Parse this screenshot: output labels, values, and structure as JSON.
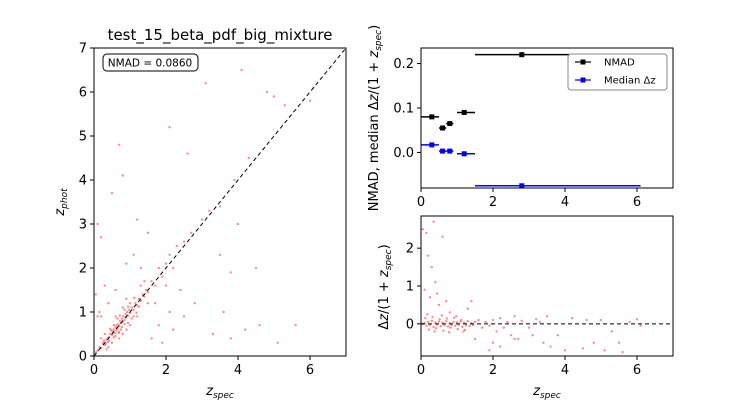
{
  "chart_data": [
    {
      "type": "scatter",
      "title": "test_15_beta_pdf_big_mixture",
      "xlabel": "z_spec",
      "ylabel": "z_phot",
      "xlim": [
        0,
        7
      ],
      "ylim": [
        0,
        7
      ],
      "xticks": [
        "0",
        "2",
        "4",
        "6"
      ],
      "yticks": [
        "0",
        "1",
        "2",
        "3",
        "4",
        "5",
        "6",
        "7"
      ],
      "annotation": "NMAD = 0.0860",
      "reference_line": "y = x (dashed)",
      "point_color": "#ff0000",
      "points": [
        [
          0.05,
          0.08
        ],
        [
          0.1,
          0.12
        ],
        [
          0.15,
          0.2
        ],
        [
          0.2,
          0.18
        ],
        [
          0.25,
          0.3
        ],
        [
          0.3,
          0.25
        ],
        [
          0.35,
          0.38
        ],
        [
          0.4,
          0.42
        ],
        [
          0.42,
          0.35
        ],
        [
          0.45,
          0.5
        ],
        [
          0.5,
          0.48
        ],
        [
          0.52,
          0.55
        ],
        [
          0.55,
          0.6
        ],
        [
          0.58,
          0.52
        ],
        [
          0.6,
          0.65
        ],
        [
          0.62,
          0.7
        ],
        [
          0.65,
          0.62
        ],
        [
          0.68,
          0.72
        ],
        [
          0.7,
          0.68
        ],
        [
          0.72,
          0.8
        ],
        [
          0.75,
          0.75
        ],
        [
          0.78,
          0.85
        ],
        [
          0.8,
          0.78
        ],
        [
          0.82,
          0.9
        ],
        [
          0.85,
          0.82
        ],
        [
          0.88,
          0.95
        ],
        [
          0.9,
          0.88
        ],
        [
          0.92,
          1.0
        ],
        [
          0.95,
          0.92
        ],
        [
          0.98,
          1.05
        ],
        [
          1.0,
          0.98
        ],
        [
          1.05,
          1.1
        ],
        [
          1.1,
          1.05
        ],
        [
          1.15,
          1.2
        ],
        [
          1.2,
          1.15
        ],
        [
          1.25,
          1.3
        ],
        [
          1.3,
          1.25
        ],
        [
          1.35,
          1.4
        ],
        [
          1.4,
          1.35
        ],
        [
          1.45,
          1.5
        ],
        [
          1.5,
          1.45
        ],
        [
          0.6,
          0.45
        ],
        [
          0.7,
          0.55
        ],
        [
          0.55,
          0.7
        ],
        [
          0.65,
          0.85
        ],
        [
          0.75,
          0.6
        ],
        [
          0.85,
          1.05
        ],
        [
          0.95,
          0.75
        ],
        [
          1.0,
          1.2
        ],
        [
          1.1,
          0.9
        ],
        [
          0.3,
          0.5
        ],
        [
          0.4,
          0.2
        ],
        [
          0.5,
          0.3
        ],
        [
          0.2,
          0.4
        ],
        [
          0.35,
          0.15
        ],
        [
          0.9,
          0.6
        ],
        [
          1.2,
          0.9
        ],
        [
          1.3,
          1.6
        ],
        [
          0.8,
          1.1
        ],
        [
          0.6,
          0.9
        ],
        [
          0.7,
          0.4
        ],
        [
          1.6,
          1.7
        ],
        [
          1.7,
          1.6
        ],
        [
          1.8,
          2.0
        ],
        [
          1.9,
          1.8
        ],
        [
          2.0,
          2.1
        ],
        [
          2.1,
          2.3
        ],
        [
          2.2,
          2.0
        ],
        [
          2.3,
          2.5
        ],
        [
          2.5,
          2.6
        ],
        [
          1.5,
          1.2
        ],
        [
          1.4,
          1.7
        ],
        [
          1.0,
          0.7
        ],
        [
          0.9,
          1.3
        ],
        [
          0.8,
          0.5
        ],
        [
          0.2,
          0.9
        ],
        [
          0.15,
          1.0
        ],
        [
          0.1,
          0.9
        ],
        [
          0.05,
          1.4
        ],
        [
          0.3,
          1.6
        ],
        [
          0.2,
          2.7
        ],
        [
          0.1,
          3.0
        ],
        [
          0.5,
          3.7
        ],
        [
          0.7,
          4.8
        ],
        [
          0.8,
          4.1
        ],
        [
          2.1,
          5.2
        ],
        [
          3.1,
          6.2
        ],
        [
          4.1,
          6.5
        ],
        [
          4.5,
          2.0
        ],
        [
          4.8,
          6.0
        ],
        [
          5.0,
          5.9
        ],
        [
          5.3,
          5.7
        ],
        [
          6.0,
          5.8
        ],
        [
          6.1,
          6.1
        ],
        [
          5.1,
          0.3
        ],
        [
          4.2,
          0.6
        ],
        [
          4.6,
          0.7
        ],
        [
          5.6,
          0.7
        ],
        [
          3.6,
          1.0
        ],
        [
          3.3,
          0.5
        ],
        [
          3.8,
          0.4
        ],
        [
          2.8,
          1.2
        ],
        [
          2.5,
          0.9
        ],
        [
          2.1,
          1.0
        ],
        [
          3.0,
          3.1
        ],
        [
          3.2,
          3.3
        ],
        [
          2.7,
          2.8
        ],
        [
          3.5,
          3.4
        ],
        [
          3.9,
          4.0
        ],
        [
          4.3,
          4.5
        ],
        [
          2.4,
          1.5
        ],
        [
          2.0,
          1.6
        ],
        [
          1.8,
          0.7
        ],
        [
          1.7,
          1.2
        ],
        [
          1.6,
          0.4
        ],
        [
          1.9,
          0.3
        ],
        [
          2.2,
          0.6
        ],
        [
          0.9,
          2.1
        ],
        [
          1.1,
          2.3
        ],
        [
          1.3,
          2.0
        ],
        [
          0.6,
          1.5
        ],
        [
          0.4,
          1.2
        ],
        [
          3.5,
          2.3
        ],
        [
          4.0,
          3.0
        ],
        [
          3.8,
          1.9
        ],
        [
          1.5,
          2.8
        ],
        [
          1.2,
          3.1
        ],
        [
          2.6,
          4.6
        ],
        [
          0.45,
          0.62
        ],
        [
          0.55,
          0.42
        ],
        [
          0.62,
          0.58
        ],
        [
          0.68,
          0.52
        ],
        [
          0.72,
          0.92
        ],
        [
          0.78,
          0.66
        ],
        [
          0.85,
          0.72
        ],
        [
          0.95,
          1.12
        ],
        [
          1.05,
          0.85
        ],
        [
          1.12,
          1.32
        ],
        [
          1.18,
          0.98
        ],
        [
          1.25,
          1.12
        ],
        [
          0.32,
          0.28
        ],
        [
          0.28,
          0.35
        ],
        [
          0.38,
          0.32
        ],
        [
          0.48,
          0.58
        ]
      ]
    },
    {
      "type": "line",
      "ylabel": "NMAD, median Δz/(1 + z_spec)",
      "xlim": [
        0,
        7
      ],
      "ylim": [
        -0.08,
        0.235
      ],
      "xticks": [
        "0",
        "2",
        "4",
        "6"
      ],
      "yticks": [
        "0.0",
        "0.1",
        "0.2"
      ],
      "legend_position": "upper right",
      "series": [
        {
          "name": "NMAD",
          "color": "#000000",
          "bins": [
            {
              "x": 0.3,
              "xerr": [
                0.0,
                0.5
              ],
              "y": 0.08,
              "yerr": 0.004
            },
            {
              "x": 0.6,
              "xerr": [
                0.5,
                0.7
              ],
              "y": 0.055,
              "yerr": 0.004
            },
            {
              "x": 0.8,
              "xerr": [
                0.7,
                0.9
              ],
              "y": 0.065,
              "yerr": 0.004
            },
            {
              "x": 1.2,
              "xerr": [
                1.0,
                1.5
              ],
              "y": 0.09,
              "yerr": 0.005
            },
            {
              "x": 2.8,
              "xerr": [
                1.5,
                6.1
              ],
              "y": 0.22,
              "yerr": 0.004
            }
          ]
        },
        {
          "name": "Median Δz",
          "color": "#0000ff",
          "bins": [
            {
              "x": 0.3,
              "xerr": [
                0.0,
                0.5
              ],
              "y": 0.017,
              "yerr": 0.004
            },
            {
              "x": 0.6,
              "xerr": [
                0.5,
                0.7
              ],
              "y": 0.003,
              "yerr": 0.003
            },
            {
              "x": 0.8,
              "xerr": [
                0.7,
                0.9
              ],
              "y": 0.003,
              "yerr": 0.003
            },
            {
              "x": 1.2,
              "xerr": [
                1.0,
                1.5
              ],
              "y": -0.003,
              "yerr": 0.004
            },
            {
              "x": 2.8,
              "xerr": [
                1.5,
                6.1
              ],
              "y": -0.075,
              "yerr": 0.004
            }
          ]
        }
      ]
    },
    {
      "type": "scatter",
      "xlabel": "z_spec",
      "ylabel": "Δz/(1 + z_spec)",
      "xlim": [
        0,
        7
      ],
      "ylim": [
        -0.85,
        2.85
      ],
      "xticks": [
        "0",
        "2",
        "4",
        "6"
      ],
      "yticks": [
        "0",
        "1",
        "2"
      ],
      "reference_line": "y = 0 (dashed)",
      "point_color": "#ff0000",
      "points": [
        [
          0.05,
          0.0
        ],
        [
          0.1,
          0.02
        ],
        [
          0.15,
          -0.05
        ],
        [
          0.2,
          0.05
        ],
        [
          0.25,
          -0.03
        ],
        [
          0.3,
          0.08
        ],
        [
          0.35,
          -0.08
        ],
        [
          0.4,
          0.04
        ],
        [
          0.45,
          -0.02
        ],
        [
          0.5,
          0.06
        ],
        [
          0.55,
          -0.06
        ],
        [
          0.6,
          0.03
        ],
        [
          0.65,
          -0.04
        ],
        [
          0.7,
          0.07
        ],
        [
          0.75,
          -0.07
        ],
        [
          0.8,
          0.02
        ],
        [
          0.85,
          -0.03
        ],
        [
          0.9,
          0.05
        ],
        [
          0.95,
          -0.05
        ],
        [
          1.0,
          0.04
        ],
        [
          1.05,
          -0.02
        ],
        [
          1.1,
          0.06
        ],
        [
          1.15,
          -0.08
        ],
        [
          1.2,
          0.03
        ],
        [
          1.25,
          -0.04
        ],
        [
          1.3,
          0.07
        ],
        [
          1.35,
          -0.06
        ],
        [
          1.4,
          0.02
        ],
        [
          1.45,
          -0.03
        ],
        [
          1.5,
          0.05
        ],
        [
          0.12,
          0.15
        ],
        [
          0.22,
          -0.15
        ],
        [
          0.32,
          0.18
        ],
        [
          0.42,
          -0.12
        ],
        [
          0.52,
          0.12
        ],
        [
          0.62,
          -0.18
        ],
        [
          0.72,
          0.14
        ],
        [
          0.82,
          -0.1
        ],
        [
          0.92,
          0.16
        ],
        [
          1.02,
          -0.14
        ],
        [
          1.12,
          0.1
        ],
        [
          1.22,
          -0.16
        ],
        [
          0.18,
          0.25
        ],
        [
          0.38,
          -0.2
        ],
        [
          0.58,
          0.22
        ],
        [
          0.78,
          -0.22
        ],
        [
          0.98,
          0.2
        ],
        [
          1.18,
          -0.2
        ],
        [
          0.05,
          2.5
        ],
        [
          0.15,
          2.4
        ],
        [
          0.2,
          1.8
        ],
        [
          0.3,
          1.5
        ],
        [
          0.1,
          0.9
        ],
        [
          0.25,
          0.7
        ],
        [
          0.4,
          1.1
        ],
        [
          0.5,
          0.5
        ],
        [
          0.35,
          2.7
        ],
        [
          0.6,
          2.3
        ],
        [
          0.45,
          0.8
        ],
        [
          0.7,
          0.6
        ],
        [
          0.8,
          0.3
        ],
        [
          1.6,
          0.1
        ],
        [
          1.7,
          -0.1
        ],
        [
          1.8,
          0.05
        ],
        [
          1.9,
          -0.05
        ],
        [
          2.0,
          0.1
        ],
        [
          2.1,
          -0.2
        ],
        [
          2.2,
          0.15
        ],
        [
          2.3,
          -0.1
        ],
        [
          2.4,
          0.05
        ],
        [
          2.5,
          -0.3
        ],
        [
          2.6,
          0.2
        ],
        [
          2.7,
          -0.4
        ],
        [
          2.8,
          0.08
        ],
        [
          3.0,
          -0.1
        ],
        [
          3.2,
          0.12
        ],
        [
          3.4,
          -0.5
        ],
        [
          3.5,
          0.2
        ],
        [
          3.6,
          -0.6
        ],
        [
          3.8,
          -0.3
        ],
        [
          4.0,
          -0.7
        ],
        [
          4.2,
          0.15
        ],
        [
          4.5,
          -0.65
        ],
        [
          4.6,
          0.1
        ],
        [
          4.8,
          -0.5
        ],
        [
          5.0,
          0.1
        ],
        [
          5.1,
          -0.7
        ],
        [
          5.3,
          -0.2
        ],
        [
          5.5,
          -0.5
        ],
        [
          5.6,
          -0.75
        ],
        [
          5.8,
          0.05
        ],
        [
          6.0,
          0.12
        ],
        [
          6.1,
          -0.05
        ],
        [
          1.4,
          0.6
        ],
        [
          1.3,
          0.4
        ],
        [
          1.5,
          -0.4
        ],
        [
          2.0,
          -0.5
        ],
        [
          2.2,
          -0.6
        ],
        [
          1.9,
          -0.7
        ],
        [
          2.6,
          -0.4
        ],
        [
          3.1,
          -0.3
        ],
        [
          3.3,
          0.05
        ]
      ]
    }
  ]
}
